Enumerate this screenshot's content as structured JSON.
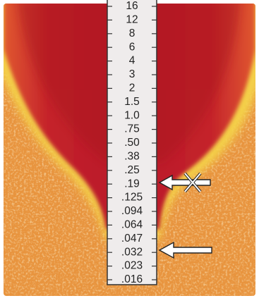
{
  "strip": {
    "labels": [
      "16",
      "12",
      "8",
      "6",
      "4",
      "3",
      "2",
      "1.5",
      "1.0",
      ".75",
      ".50",
      ".38",
      ".25",
      ".19",
      ".125",
      ".094",
      ".064",
      ".047",
      ".032",
      ".023",
      ".016"
    ]
  }
}
